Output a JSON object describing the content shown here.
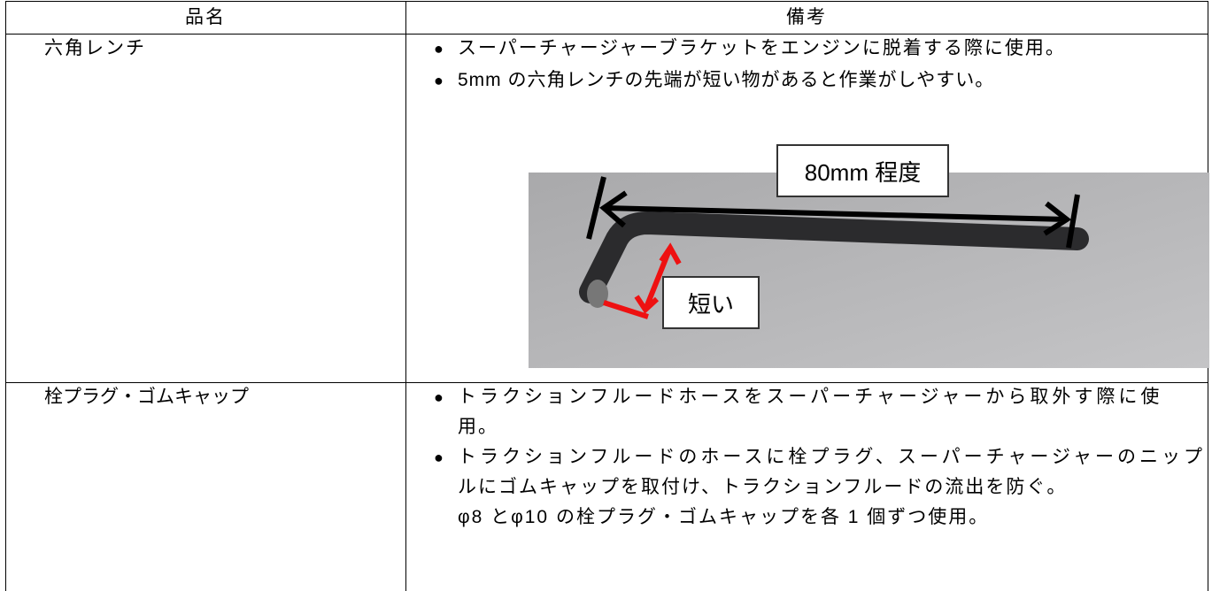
{
  "table": {
    "header": [
      "品名",
      "備考"
    ],
    "rows": [
      {
        "item": "六角レンチ",
        "notes": [
          [
            "スーパーチャージャーブラケットをエンジンに脱着する際に使用。"
          ],
          [
            "5mm の六角レンチの先端が短い物があると作業がしやすい。"
          ]
        ],
        "figure": {
          "length_label": "80mm 程度",
          "short_label": "短い"
        }
      },
      {
        "item": "栓プラグ・ゴムキャップ",
        "notes": [
          [
            "トラクションフルードホースをスーパーチャージャーから取外す際に使",
            "用。"
          ],
          [
            "トラクションフルードのホースに栓プラグ、スーパーチャージャーのニップ",
            "ルにゴムキャップを取付け、トラクションフルードの流出を防ぐ。",
            "φ8 とφ10 の栓プラグ・ゴムキャップを各 1 個ずつ使用。"
          ]
        ]
      }
    ]
  }
}
